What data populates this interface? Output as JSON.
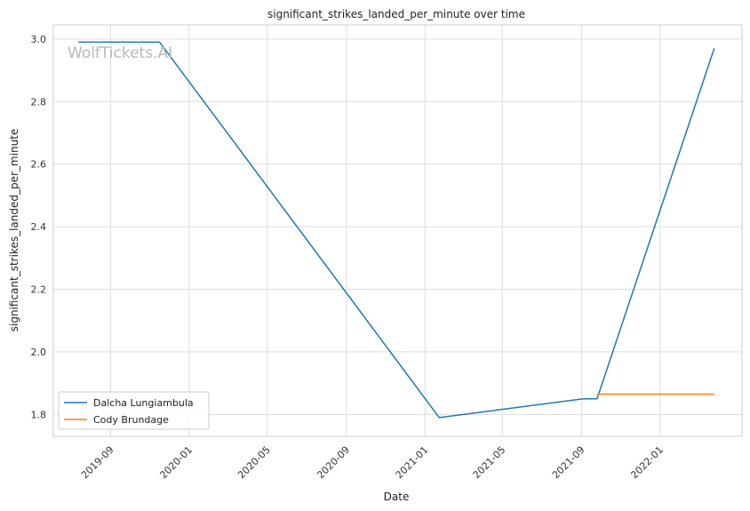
{
  "chart_data": {
    "type": "line",
    "title": "significant_strikes_landed_per_minute over time",
    "xlabel": "Date",
    "ylabel": "significant_strikes_landed_per_minute",
    "watermark": "WolfTickets.AI",
    "xlim": [
      "2019-06-04",
      "2022-05-08"
    ],
    "ylim": [
      1.73,
      3.045
    ],
    "x_ticks": [
      "2019-09",
      "2020-01",
      "2020-05",
      "2020-09",
      "2021-01",
      "2021-05",
      "2021-09",
      "2022-01"
    ],
    "y_ticks": [
      "1.8",
      "2.0",
      "2.2",
      "2.4",
      "2.6",
      "2.8",
      "3.0"
    ],
    "grid": true,
    "legend": "lower-left",
    "series": [
      {
        "name": "Dalcha Lungiambula",
        "color": "#1f77b4",
        "points": [
          {
            "x": "2019-07-13",
            "y": 2.99
          },
          {
            "x": "2019-11-16",
            "y": 2.99
          },
          {
            "x": "2021-01-23",
            "y": 1.79
          },
          {
            "x": "2021-09-04",
            "y": 1.85
          },
          {
            "x": "2021-09-25",
            "y": 1.85
          },
          {
            "x": "2022-03-26",
            "y": 2.97
          }
        ]
      },
      {
        "name": "Cody Brundage",
        "color": "#ff7f0e",
        "points": [
          {
            "x": "2021-09-25",
            "y": 1.865
          },
          {
            "x": "2022-03-26",
            "y": 1.865
          }
        ]
      }
    ]
  }
}
